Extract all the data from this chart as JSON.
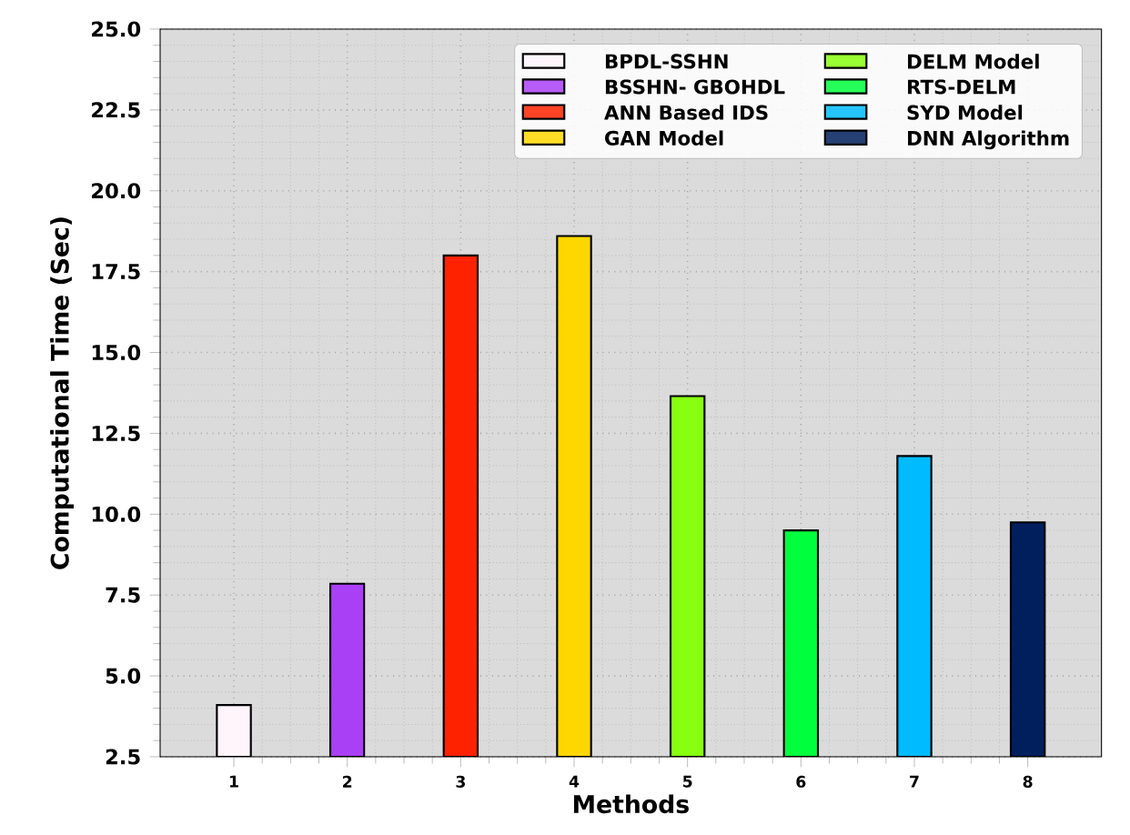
{
  "chart_data": {
    "type": "bar",
    "xlabel": "Methods",
    "ylabel": "Computational  Time (Sec)",
    "categories": [
      "1",
      "2",
      "3",
      "4",
      "5",
      "6",
      "7",
      "8"
    ],
    "series": [
      {
        "name": "BPDL-SSHN",
        "color": "#fff5fb",
        "values": [
          4.1,
          null,
          null,
          null,
          null,
          null,
          null,
          null
        ]
      },
      {
        "name": "BSSHN- GBOHDL",
        "color": "#aa40f5",
        "values": [
          null,
          7.85,
          null,
          null,
          null,
          null,
          null,
          null
        ]
      },
      {
        "name": "ANN Based IDS",
        "color": "#ff2200",
        "values": [
          null,
          null,
          18.0,
          null,
          null,
          null,
          null,
          null
        ]
      },
      {
        "name": "GAN Model",
        "color": "#ffd700",
        "values": [
          null,
          null,
          null,
          18.6,
          null,
          null,
          null,
          null
        ]
      },
      {
        "name": "DELM Model",
        "color": "#88ff11",
        "values": [
          null,
          null,
          null,
          null,
          13.65,
          null,
          null,
          null
        ]
      },
      {
        "name": "RTS-DELM",
        "color": "#00ff3c",
        "values": [
          null,
          null,
          null,
          null,
          null,
          9.5,
          null,
          null
        ]
      },
      {
        "name": "SYD Model",
        "color": "#00bbff",
        "values": [
          null,
          null,
          null,
          null,
          null,
          null,
          11.8,
          null
        ]
      },
      {
        "name": "DNN Algorithm",
        "color": "#001f5c",
        "values": [
          null,
          null,
          null,
          null,
          null,
          null,
          null,
          9.75
        ]
      }
    ],
    "ylim": [
      2.5,
      25
    ],
    "yticks": [
      {
        "value": 2.5,
        "label": "2.5"
      },
      {
        "value": 5,
        "label": "5.0"
      },
      {
        "value": 7.5,
        "label": "7.5"
      },
      {
        "value": 10,
        "label": "10.0"
      },
      {
        "value": 12.5,
        "label": "12.5"
      },
      {
        "value": 15,
        "label": "15.0"
      },
      {
        "value": 17.5,
        "label": "17.5"
      },
      {
        "value": 20,
        "label": "20.0"
      },
      {
        "value": 22.5,
        "label": "22.5"
      },
      {
        "value": 25,
        "label": "25.0"
      }
    ],
    "grid": true,
    "legend": "top right"
  }
}
